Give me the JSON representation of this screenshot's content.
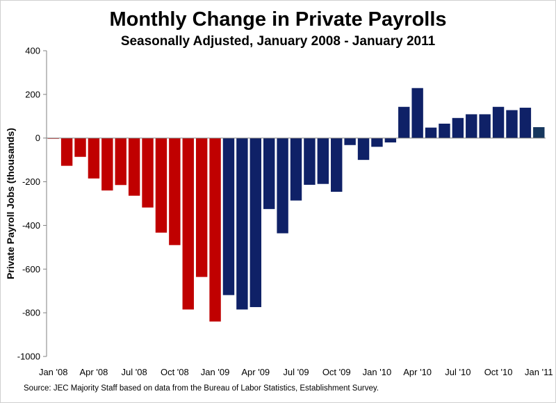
{
  "chart_data": {
    "type": "bar",
    "title": "Monthly Change in Private Payrolls",
    "subtitle": "Seasonally Adjusted, January 2008 - January 2011",
    "ylabel": "Private Payroll Jobs (thousands)",
    "source": "Source: JEC Majority Staff based on data from the Bureau of Labor Statistics, Establishment Survey.",
    "ylim": [
      -1000,
      400
    ],
    "yticks": [
      400,
      200,
      0,
      -200,
      -400,
      -600,
      -800,
      -1000
    ],
    "grid": false,
    "x_tick_labels": [
      {
        "index": 0,
        "label": "Jan '08"
      },
      {
        "index": 3,
        "label": "Apr '08"
      },
      {
        "index": 6,
        "label": "Jul '08"
      },
      {
        "index": 9,
        "label": "Oct '08"
      },
      {
        "index": 12,
        "label": "Jan '09"
      },
      {
        "index": 15,
        "label": "Apr '09"
      },
      {
        "index": 18,
        "label": "Jul '09"
      },
      {
        "index": 21,
        "label": "Oct '09"
      },
      {
        "index": 24,
        "label": "Jan '10"
      },
      {
        "index": 27,
        "label": "Apr '10"
      },
      {
        "index": 30,
        "label": "Jul '10"
      },
      {
        "index": 33,
        "label": "Oct '10"
      },
      {
        "index": 36,
        "label": "Jan '11"
      }
    ],
    "colors": {
      "period_2008": "#c00000",
      "period_2009_on": "#0f2167",
      "latest": "#17375e"
    },
    "bars": [
      {
        "value": -3,
        "color": "#c00000"
      },
      {
        "value": -127,
        "color": "#c00000"
      },
      {
        "value": -86,
        "color": "#c00000"
      },
      {
        "value": -185,
        "color": "#c00000"
      },
      {
        "value": -240,
        "color": "#c00000"
      },
      {
        "value": -215,
        "color": "#c00000"
      },
      {
        "value": -264,
        "color": "#c00000"
      },
      {
        "value": -318,
        "color": "#c00000"
      },
      {
        "value": -433,
        "color": "#c00000"
      },
      {
        "value": -490,
        "color": "#c00000"
      },
      {
        "value": -785,
        "color": "#c00000"
      },
      {
        "value": -636,
        "color": "#c00000"
      },
      {
        "value": -840,
        "color": "#c00000"
      },
      {
        "value": -719,
        "color": "#0f2167"
      },
      {
        "value": -785,
        "color": "#0f2167"
      },
      {
        "value": -774,
        "color": "#0f2167"
      },
      {
        "value": -325,
        "color": "#0f2167"
      },
      {
        "value": -436,
        "color": "#0f2167"
      },
      {
        "value": -286,
        "color": "#0f2167"
      },
      {
        "value": -214,
        "color": "#0f2167"
      },
      {
        "value": -210,
        "color": "#0f2167"
      },
      {
        "value": -246,
        "color": "#0f2167"
      },
      {
        "value": -32,
        "color": "#0f2167"
      },
      {
        "value": -100,
        "color": "#0f2167"
      },
      {
        "value": -40,
        "color": "#0f2167"
      },
      {
        "value": -20,
        "color": "#0f2167"
      },
      {
        "value": 143,
        "color": "#0f2167"
      },
      {
        "value": 229,
        "color": "#0f2167"
      },
      {
        "value": 48,
        "color": "#0f2167"
      },
      {
        "value": 66,
        "color": "#0f2167"
      },
      {
        "value": 92,
        "color": "#0f2167"
      },
      {
        "value": 109,
        "color": "#0f2167"
      },
      {
        "value": 109,
        "color": "#0f2167"
      },
      {
        "value": 143,
        "color": "#0f2167"
      },
      {
        "value": 128,
        "color": "#0f2167"
      },
      {
        "value": 139,
        "color": "#0f2167"
      },
      {
        "value": 50,
        "color": "#17375e"
      }
    ]
  }
}
